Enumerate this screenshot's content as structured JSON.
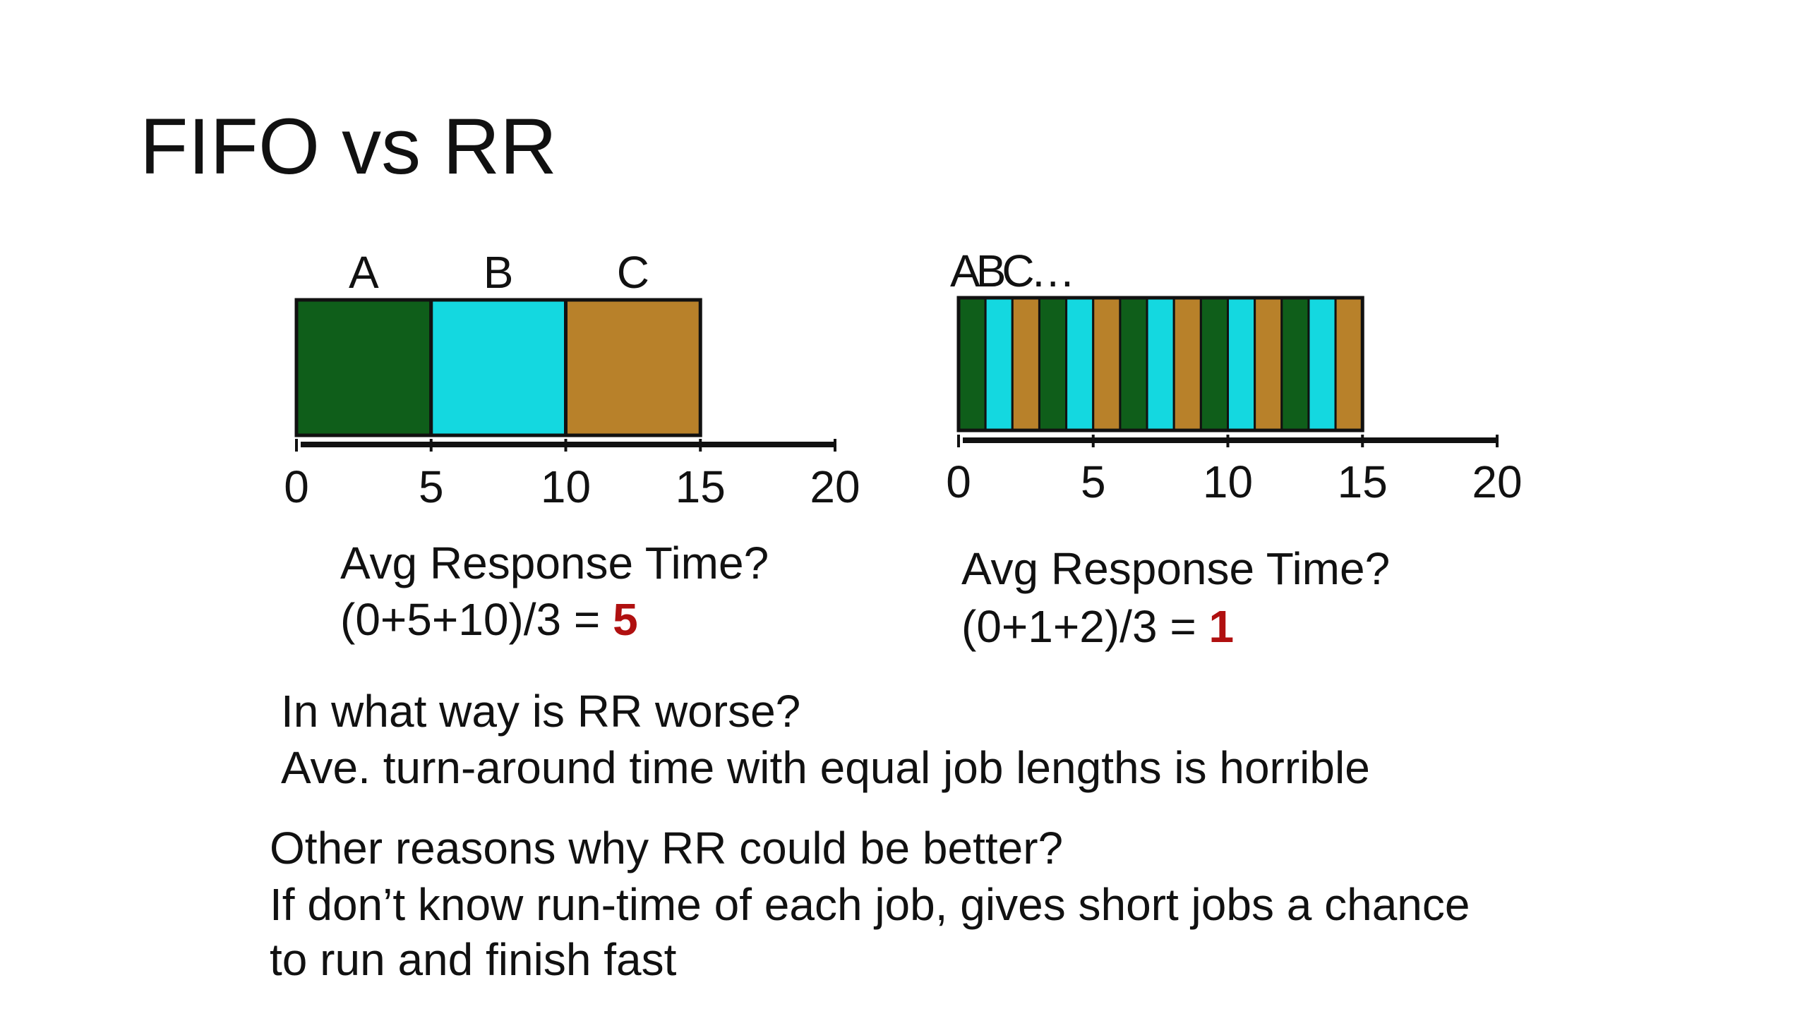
{
  "slide": {
    "title": "FIFO vs RR"
  },
  "fifo": {
    "job_labels": [
      "A",
      "B",
      "C"
    ],
    "question": "Avg Response Time?",
    "formula": "(0+5+10)/3 = ",
    "answer": "5"
  },
  "rr": {
    "job_labels_text": "ABC…",
    "question": "Avg Response Time?",
    "formula": "(0+1+2)/3 = ",
    "answer": "1"
  },
  "notes": {
    "worse_question": "In what way is RR worse?",
    "worse_answer": "Ave. turn-around time with equal job lengths is horrible",
    "better_question": "Other reasons why RR could be better?",
    "better_answer_line1": "If don’t know run-time of each job, gives short jobs a chance",
    "better_answer_line2": "to run and finish fast"
  },
  "chart_data": [
    {
      "type": "gantt",
      "name": "FIFO",
      "x_ticks": [
        "0",
        "5",
        "10",
        "15",
        "20"
      ],
      "xlim": [
        0,
        20
      ],
      "segments": [
        {
          "job": "A",
          "start": 0,
          "end": 5
        },
        {
          "job": "B",
          "start": 5,
          "end": 10
        },
        {
          "job": "C",
          "start": 10,
          "end": 15
        }
      ]
    },
    {
      "type": "gantt",
      "name": "RR",
      "x_ticks": [
        "0",
        "5",
        "10",
        "15",
        "20"
      ],
      "xlim": [
        0,
        20
      ],
      "quantum": 1,
      "job_sequence": [
        "A",
        "B",
        "C",
        "A",
        "B",
        "C",
        "A",
        "B",
        "C",
        "A",
        "B",
        "C",
        "A",
        "B",
        "C"
      ]
    }
  ],
  "colors": {
    "A": "#0f5e1a",
    "B": "#14d8e0",
    "C": "#b8812a",
    "answer": "#b01010",
    "axis": "#111111"
  }
}
